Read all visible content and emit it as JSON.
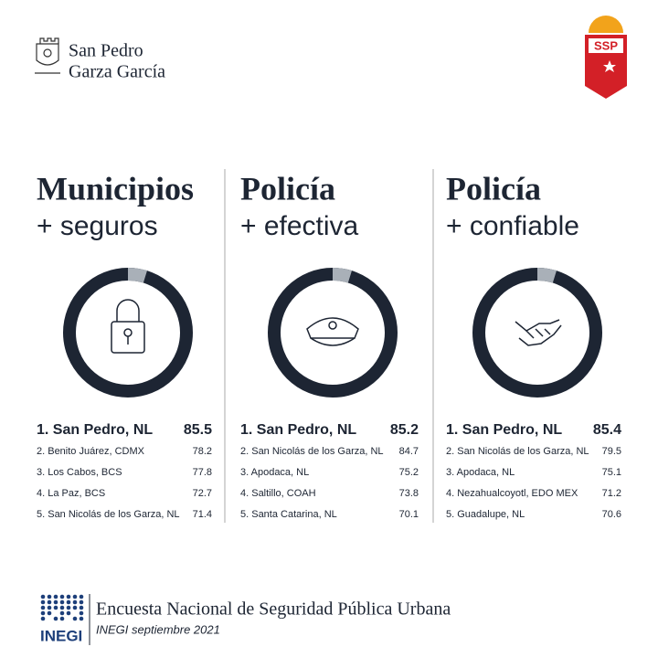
{
  "header": {
    "brand_lines": [
      "San Pedro",
      "Garza García"
    ],
    "badge": "SSP"
  },
  "panels": [
    {
      "title": "Municipios",
      "subtitle": "+ seguros",
      "ranking": [
        {
          "name": "1. San Pedro, NL",
          "value": 85.5
        },
        {
          "name": "2. Benito Juárez, CDMX",
          "value": 78.2
        },
        {
          "name": "3. Los Cabos, BCS",
          "value": 77.8
        },
        {
          "name": "4. La Paz, BCS",
          "value": 72.7
        },
        {
          "name": "5. San Nicolás de los Garza, NL",
          "value": 71.4
        }
      ]
    },
    {
      "title": "Policía",
      "subtitle": "+ efectiva",
      "ranking": [
        {
          "name": "1. San Pedro, NL",
          "value": 85.2
        },
        {
          "name": "2. San Nicolás de los Garza, NL",
          "value": 84.7
        },
        {
          "name": "3. Apodaca, NL",
          "value": 75.2
        },
        {
          "name": "4. Saltillo, COAH",
          "value": 73.8
        },
        {
          "name": "5. Santa Catarina, NL",
          "value": 70.1
        }
      ]
    },
    {
      "title": "Policía",
      "subtitle": "+ confiable",
      "ranking": [
        {
          "name": "1. San Pedro, NL",
          "value": 85.4
        },
        {
          "name": "2. San Nicolás de los Garza, NL",
          "value": 79.5
        },
        {
          "name": "3. Apodaca, NL",
          "value": 75.1
        },
        {
          "name": "4. Nezahualcoyotl, EDO MEX",
          "value": 71.2
        },
        {
          "name": "5. Guadalupe, NL",
          "value": 70.6
        }
      ]
    }
  ],
  "footer": {
    "logo": "INEGI",
    "survey": "Encuesta Nacional de Seguridad Pública Urbana",
    "source": "INEGI septiembre 2021"
  }
}
